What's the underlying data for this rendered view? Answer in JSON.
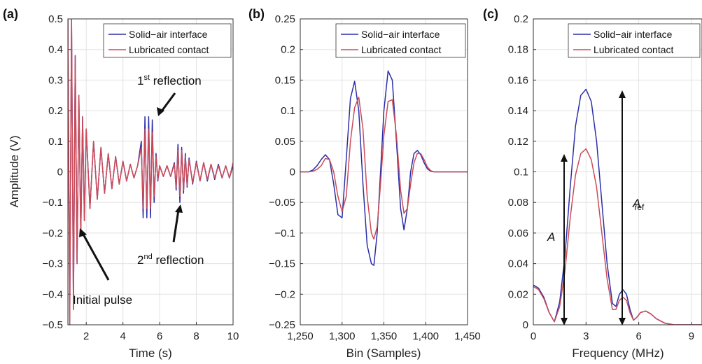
{
  "colors": {
    "series1": "#2b2fa8",
    "series2": "#cc4b57",
    "grid": "#e2e2e2",
    "axes": "#333333"
  },
  "chart_data": [
    {
      "panel_label": "(a)",
      "type": "line",
      "xlabel": "Time (s)",
      "ylabel": "Amplitude (V)",
      "xlim": [
        1,
        10
      ],
      "ylim": [
        -0.5,
        0.5
      ],
      "xticks": [
        2,
        4,
        6,
        8,
        10
      ],
      "yticks": [
        -0.5,
        -0.4,
        -0.3,
        -0.2,
        -0.1,
        0,
        0.1,
        0.2,
        0.3,
        0.4,
        0.5
      ],
      "grid": true,
      "legend": "top-right",
      "series": [
        {
          "name": "Solid−air interface",
          "color": "#2b2fa8",
          "x": [
            1.0,
            1.1,
            1.2,
            1.3,
            1.4,
            1.5,
            1.6,
            1.7,
            1.8,
            1.9,
            2.0,
            2.2,
            2.4,
            2.6,
            2.8,
            3.0,
            3.2,
            3.4,
            3.6,
            3.8,
            4.0,
            4.2,
            4.4,
            4.6,
            4.8,
            5.0,
            5.1,
            5.2,
            5.3,
            5.4,
            5.5,
            5.6,
            5.7,
            5.8,
            5.9,
            6.0,
            6.2,
            6.4,
            6.6,
            6.8,
            6.9,
            7.0,
            7.1,
            7.2,
            7.3,
            7.4,
            7.5,
            7.6,
            7.8,
            8.0,
            8.2,
            8.4,
            8.6,
            8.8,
            9.0,
            9.2,
            9.4,
            9.6,
            9.8,
            10.0
          ],
          "y": [
            0.5,
            -0.5,
            0.5,
            -0.45,
            0.38,
            -0.3,
            0.25,
            -0.21,
            0.18,
            -0.16,
            0.14,
            -0.12,
            0.1,
            -0.09,
            0.08,
            -0.07,
            0.06,
            -0.055,
            0.05,
            -0.04,
            0.035,
            -0.03,
            0.025,
            -0.02,
            0.02,
            0.1,
            -0.15,
            0.18,
            -0.15,
            0.18,
            -0.15,
            0.17,
            -0.1,
            0.06,
            -0.03,
            0.02,
            -0.015,
            0.02,
            -0.015,
            0.03,
            -0.06,
            0.09,
            -0.1,
            0.08,
            -0.07,
            0.06,
            -0.05,
            0.045,
            -0.04,
            0.035,
            -0.03,
            0.03,
            -0.03,
            0.025,
            -0.025,
            0.025,
            -0.02,
            0.02,
            -0.02,
            0.02
          ]
        },
        {
          "name": "Lubricated contact",
          "color": "#cc4b57",
          "x": [
            1.0,
            1.1,
            1.2,
            1.3,
            1.4,
            1.5,
            1.6,
            1.7,
            1.8,
            1.9,
            2.0,
            2.2,
            2.4,
            2.6,
            2.8,
            3.0,
            3.2,
            3.4,
            3.6,
            3.8,
            4.0,
            4.2,
            4.4,
            4.6,
            4.8,
            5.0,
            5.1,
            5.2,
            5.3,
            5.4,
            5.5,
            5.6,
            5.7,
            5.8,
            5.9,
            6.0,
            6.2,
            6.4,
            6.6,
            6.8,
            6.9,
            7.0,
            7.1,
            7.2,
            7.3,
            7.4,
            7.5,
            7.6,
            7.8,
            8.0,
            8.2,
            8.4,
            8.6,
            8.8,
            9.0,
            9.2,
            9.4,
            9.6,
            9.8,
            10.0
          ],
          "y": [
            0.5,
            -0.5,
            0.5,
            -0.45,
            0.38,
            -0.3,
            0.25,
            -0.21,
            0.18,
            -0.16,
            0.14,
            -0.12,
            0.1,
            -0.09,
            0.08,
            -0.07,
            0.06,
            -0.055,
            0.05,
            -0.04,
            0.035,
            -0.03,
            0.025,
            -0.02,
            0.02,
            0.08,
            -0.12,
            0.14,
            -0.12,
            0.14,
            -0.12,
            0.13,
            -0.08,
            0.05,
            -0.025,
            0.02,
            -0.015,
            0.02,
            -0.015,
            0.025,
            -0.05,
            0.07,
            -0.08,
            0.07,
            -0.06,
            0.05,
            -0.045,
            0.04,
            -0.035,
            0.03,
            -0.03,
            0.03,
            -0.025,
            0.025,
            -0.02,
            0.02,
            -0.02,
            0.02,
            -0.02,
            0.03
          ]
        }
      ],
      "annotations": [
        {
          "prefix": "1",
          "sup": "st",
          "suffix": " reflection"
        },
        {
          "prefix": "2",
          "sup": "nd",
          "suffix": " reflection"
        },
        {
          "prefix": "Initial pulse",
          "sup": "",
          "suffix": ""
        }
      ]
    },
    {
      "panel_label": "(b)",
      "type": "line",
      "xlabel": "Bin (Samples)",
      "ylabel": "",
      "xlim": [
        1250,
        1450
      ],
      "ylim": [
        -0.25,
        0.25
      ],
      "xticks": [
        1250,
        1300,
        1350,
        1400,
        1450
      ],
      "xtick_labels": [
        "1,250",
        "1,300",
        "1,350",
        "1,400",
        "1,450"
      ],
      "yticks": [
        -0.25,
        -0.2,
        -0.15,
        -0.1,
        -0.05,
        0,
        0.05,
        0.1,
        0.15,
        0.2,
        0.25
      ],
      "grid": true,
      "legend": "top-right",
      "series": [
        {
          "name": "Solid−air interface",
          "color": "#2b2fa8",
          "x": [
            1250,
            1260,
            1265,
            1270,
            1275,
            1280,
            1285,
            1290,
            1295,
            1300,
            1305,
            1310,
            1315,
            1320,
            1325,
            1330,
            1335,
            1338,
            1342,
            1346,
            1350,
            1355,
            1360,
            1365,
            1370,
            1374,
            1378,
            1382,
            1386,
            1390,
            1394,
            1398,
            1402,
            1406,
            1410,
            1420,
            1450
          ],
          "y": [
            0,
            0,
            0.003,
            0.01,
            0.02,
            0.028,
            0.02,
            -0.02,
            -0.07,
            -0.075,
            0.02,
            0.12,
            0.148,
            0.1,
            -0.02,
            -0.12,
            -0.15,
            -0.153,
            -0.1,
            0.0,
            0.1,
            0.165,
            0.15,
            0.05,
            -0.06,
            -0.095,
            -0.06,
            0.0,
            0.03,
            0.035,
            0.028,
            0.015,
            0.005,
            0.001,
            0,
            0,
            0
          ]
        },
        {
          "name": "Lubricated contact",
          "color": "#cc4b57",
          "x": [
            1250,
            1260,
            1265,
            1270,
            1275,
            1280,
            1285,
            1290,
            1295,
            1300,
            1305,
            1310,
            1315,
            1320,
            1325,
            1330,
            1335,
            1338,
            1342,
            1346,
            1350,
            1355,
            1360,
            1365,
            1370,
            1374,
            1378,
            1382,
            1386,
            1390,
            1394,
            1398,
            1402,
            1406,
            1410,
            1420,
            1450
          ],
          "y": [
            0,
            0,
            0.001,
            0.004,
            0.01,
            0.022,
            0.02,
            0.0,
            -0.04,
            -0.065,
            -0.04,
            0.05,
            0.105,
            0.122,
            0.07,
            -0.04,
            -0.1,
            -0.11,
            -0.09,
            -0.02,
            0.06,
            0.115,
            0.118,
            0.06,
            -0.03,
            -0.068,
            -0.06,
            -0.02,
            0.015,
            0.03,
            0.03,
            0.02,
            0.008,
            0.002,
            0,
            0,
            0
          ]
        }
      ]
    },
    {
      "panel_label": "(c)",
      "type": "line",
      "xlabel": "Frequency (MHz)",
      "ylabel": "",
      "xlim": [
        0,
        9.6
      ],
      "ylim": [
        0,
        0.2
      ],
      "xticks": [
        0,
        3,
        6,
        9
      ],
      "yticks": [
        0,
        0.02,
        0.04,
        0.06,
        0.08,
        0.1,
        0.12,
        0.14,
        0.16,
        0.18,
        0.2
      ],
      "grid": true,
      "legend": "top-right",
      "series": [
        {
          "name": "Solid−air interface",
          "color": "#2b2fa8",
          "x": [
            0,
            0.3,
            0.6,
            0.9,
            1.2,
            1.5,
            1.8,
            2.1,
            2.4,
            2.7,
            3.0,
            3.3,
            3.6,
            3.9,
            4.2,
            4.5,
            4.7,
            4.9,
            5.1,
            5.3,
            5.5,
            5.7,
            5.9,
            6.1,
            6.4,
            6.7,
            7.0,
            7.5,
            8.0,
            8.5,
            9.0,
            9.6
          ],
          "y": [
            0.026,
            0.024,
            0.018,
            0.008,
            0.002,
            0.015,
            0.045,
            0.09,
            0.13,
            0.15,
            0.154,
            0.146,
            0.12,
            0.08,
            0.04,
            0.014,
            0.012,
            0.02,
            0.023,
            0.02,
            0.01,
            0.003,
            0.005,
            0.008,
            0.009,
            0.007,
            0.004,
            0.001,
            0,
            0,
            0,
            0
          ]
        },
        {
          "name": "Lubricated contact",
          "color": "#cc4b57",
          "x": [
            0,
            0.3,
            0.6,
            0.9,
            1.2,
            1.5,
            1.8,
            2.1,
            2.4,
            2.7,
            3.0,
            3.3,
            3.6,
            3.9,
            4.2,
            4.5,
            4.7,
            4.9,
            5.1,
            5.3,
            5.5,
            5.7,
            5.9,
            6.1,
            6.4,
            6.7,
            7.0,
            7.5,
            8.0,
            8.5,
            9.0,
            9.6
          ],
          "y": [
            0.025,
            0.023,
            0.017,
            0.008,
            0.002,
            0.012,
            0.035,
            0.07,
            0.098,
            0.112,
            0.115,
            0.108,
            0.09,
            0.06,
            0.03,
            0.01,
            0.01,
            0.016,
            0.018,
            0.016,
            0.008,
            0.003,
            0.005,
            0.008,
            0.009,
            0.007,
            0.004,
            0.001,
            0,
            0,
            0,
            0
          ]
        }
      ],
      "annotations": [
        {
          "main": "A",
          "sub": ""
        },
        {
          "main": "A",
          "sub": "ref"
        }
      ]
    }
  ]
}
